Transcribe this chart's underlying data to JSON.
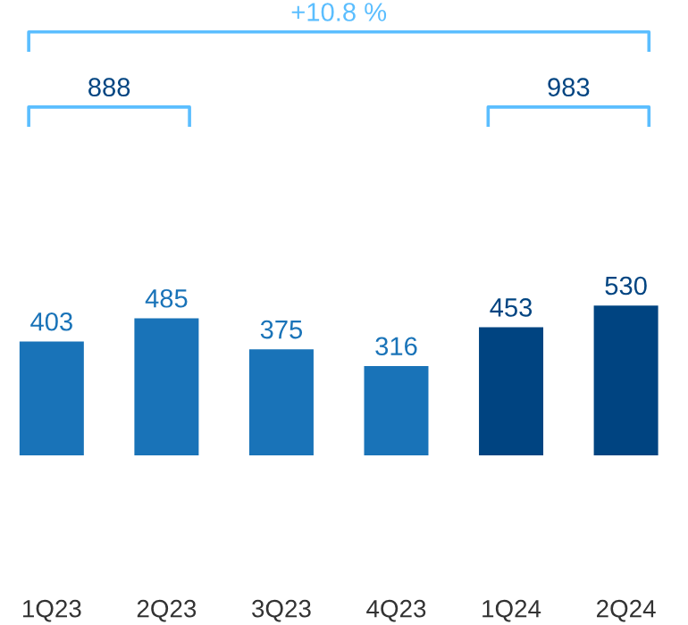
{
  "chart_data": {
    "type": "bar",
    "categories": [
      "1Q23",
      "2Q23",
      "3Q23",
      "4Q23",
      "1Q24",
      "2Q24"
    ],
    "values": [
      403,
      485,
      375,
      316,
      453,
      530
    ],
    "colors": [
      "#1973b8",
      "#1973b8",
      "#1973b8",
      "#1973b8",
      "#004481",
      "#004481"
    ],
    "data_labels": true,
    "annotations": [
      "+10.8 %",
      "888",
      "983"
    ],
    "grid": false,
    "legend": false
  }
}
